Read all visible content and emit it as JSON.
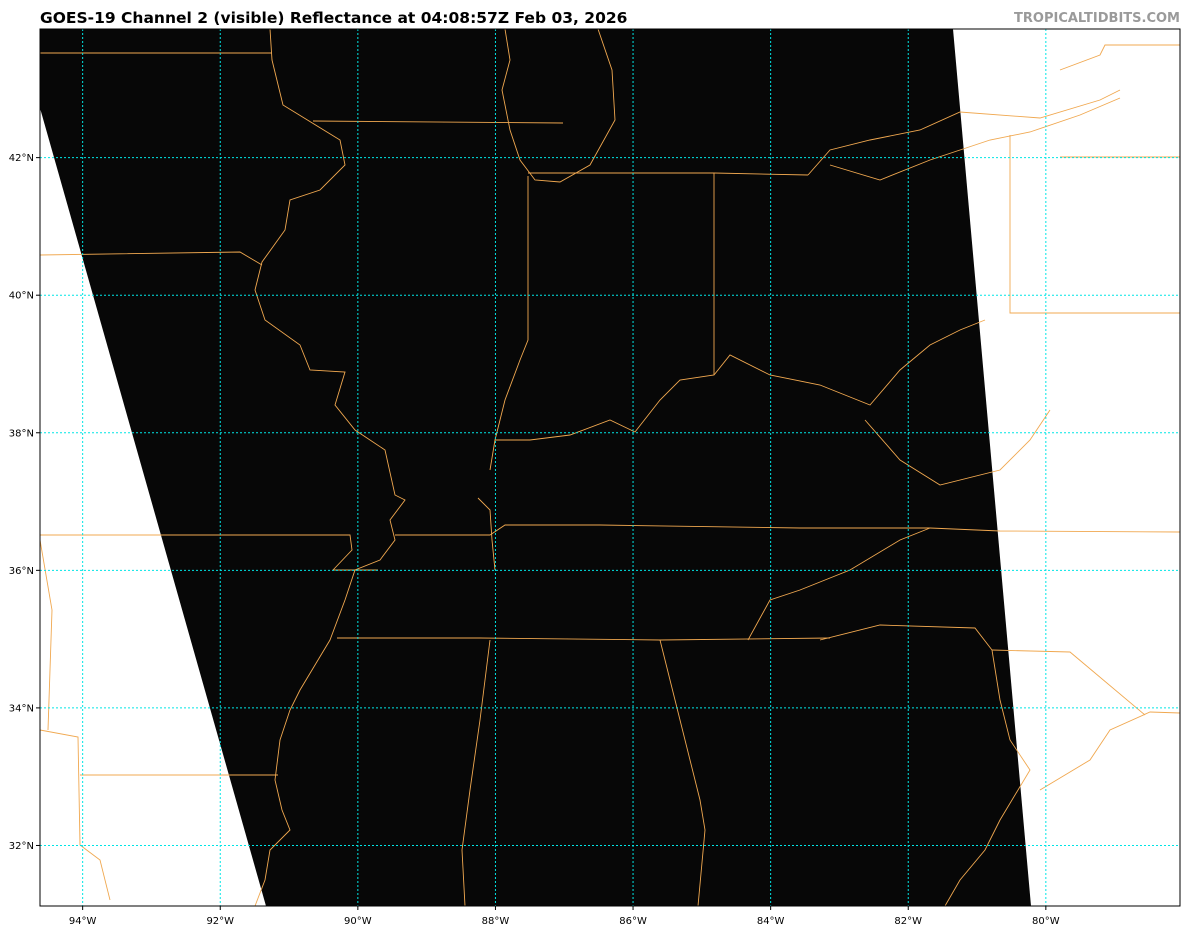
{
  "header": {
    "title": "GOES-19 Channel 2 (visible) Reflectance at 04:08:57Z Feb 03, 2026",
    "credit": "TROPICALTIDBITS.COM"
  },
  "map": {
    "product": "GOES-19 Channel 2 visible reflectance",
    "extent": {
      "lon_min": -94.62,
      "lon_max": -78.05,
      "lat_min": 31.12,
      "lat_max": 43.87
    },
    "longitudes": [
      -94,
      -92,
      -90,
      -88,
      -86,
      -84,
      -82,
      -80
    ],
    "longitude_labels": [
      "94°W",
      "92°W",
      "90°W",
      "88°W",
      "86°W",
      "84°W",
      "82°W",
      "80°W"
    ],
    "latitudes": [
      42,
      40,
      38,
      36,
      34,
      32
    ],
    "latitude_labels": [
      "42°N",
      "40°N",
      "38°N",
      "36°N",
      "34°N",
      "32°N"
    ],
    "colors": {
      "imagery": "#070707",
      "no_data": "#ffffff",
      "borders": "#f0a850",
      "gridlines": "#00e5e5"
    }
  }
}
